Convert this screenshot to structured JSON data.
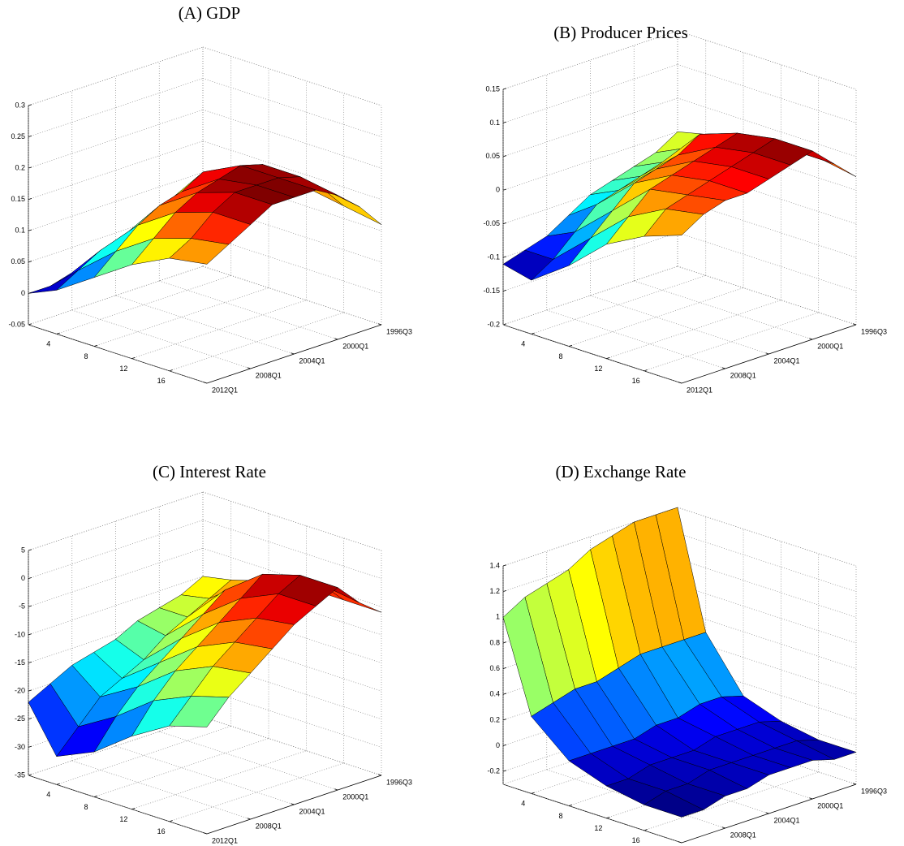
{
  "chart_data": [
    {
      "type": "surface",
      "title": "(A) GDP",
      "x": [
        1,
        4,
        8,
        12,
        16,
        20
      ],
      "xlim": [
        1,
        20
      ],
      "xticks": [
        4,
        8,
        12,
        16
      ],
      "y": [
        "2012Q1",
        null,
        "2008Q1",
        null,
        "2004Q1",
        null,
        "2000Q1",
        null,
        "1996Q3"
      ],
      "zlim": [
        -0.05,
        0.3
      ],
      "zticks": [
        -0.05,
        0,
        0.05,
        0.1,
        0.15,
        0.2,
        0.25,
        0.3
      ],
      "grid": true,
      "z": [
        [
          0,
          0,
          0.01,
          0.01,
          0.01,
          0.02,
          0.02,
          0.02,
          0.03
        ],
        [
          0.02,
          0.04,
          0.06,
          0.07,
          0.08,
          0.1,
          0.1,
          0.09,
          0.1
        ],
        [
          0.06,
          0.09,
          0.12,
          0.14,
          0.15,
          0.17,
          0.16,
          0.15,
          0.14
        ],
        [
          0.1,
          0.13,
          0.16,
          0.18,
          0.19,
          0.2,
          0.19,
          0.16,
          0.13
        ],
        [
          0.13,
          0.15,
          0.18,
          0.2,
          0.2,
          0.2,
          0.19,
          0.16,
          0.12
        ],
        [
          0.14,
          0.16,
          0.18,
          0.2,
          0.2,
          0.2,
          0.18,
          0.15,
          0.11
        ]
      ]
    },
    {
      "type": "surface",
      "title": "(B) Producer Prices",
      "x": [
        1,
        4,
        8,
        12,
        16,
        20
      ],
      "xlim": [
        1,
        20
      ],
      "xticks": [
        4,
        8,
        12,
        16
      ],
      "y": [
        "2012Q1",
        null,
        "2008Q1",
        null,
        "2004Q1",
        null,
        "2000Q1",
        null,
        "1996Q3"
      ],
      "zlim": [
        -0.2,
        0.15
      ],
      "zticks": [
        -0.2,
        -0.15,
        -0.1,
        -0.05,
        0,
        0.05,
        0.1,
        0.15
      ],
      "grid": true,
      "z": [
        [
          -0.11,
          -0.1,
          -0.09,
          -0.07,
          -0.05,
          -0.04,
          -0.03,
          -0.02,
          0
        ],
        [
          -0.12,
          -0.1,
          -0.07,
          -0.04,
          -0.03,
          -0.02,
          -0.01,
          0,
          0.01
        ],
        [
          -0.08,
          -0.05,
          -0.02,
          0.01,
          0.02,
          0.03,
          0.05,
          0.04,
          0.02
        ],
        [
          -0.03,
          0,
          0.03,
          0.04,
          0.05,
          0.06,
          0.07,
          0.05,
          0.03
        ],
        [
          0,
          0.03,
          0.04,
          0.05,
          0.06,
          0.07,
          0.08,
          0.05,
          0.03
        ],
        [
          0.02,
          0.04,
          0.05,
          0.05,
          0.06,
          0.07,
          0.08,
          0.05,
          0.02
        ]
      ]
    },
    {
      "type": "surface",
      "title": "(C) Interest Rate",
      "x": [
        1,
        4,
        8,
        12,
        16,
        20
      ],
      "xlim": [
        1,
        20
      ],
      "xticks": [
        4,
        8,
        12,
        16
      ],
      "y": [
        "2012Q1",
        null,
        "2008Q1",
        null,
        "2004Q1",
        null,
        "2000Q1",
        null,
        "1996Q3"
      ],
      "zlim": [
        -35,
        5
      ],
      "zticks": [
        -35,
        -30,
        -25,
        -20,
        -15,
        -10,
        -5,
        0,
        5
      ],
      "grid": true,
      "z": [
        [
          -22,
          -20,
          -18,
          -17,
          -16,
          -14,
          -13,
          -12,
          -10
        ],
        [
          -30,
          -26,
          -22,
          -20,
          -18,
          -15,
          -13,
          -11,
          -9
        ],
        [
          -27,
          -22,
          -18,
          -15,
          -12,
          -9,
          -6,
          -6,
          -7
        ],
        [
          -22,
          -17,
          -13,
          -10,
          -7,
          -4,
          -1,
          -3,
          -6
        ],
        [
          -18,
          -14,
          -10,
          -7,
          -4,
          -1,
          1,
          -2,
          -6
        ],
        [
          -16,
          -12,
          -9,
          -6,
          -3,
          -1,
          1,
          -3,
          -6
        ]
      ]
    },
    {
      "type": "surface",
      "title": "(D) Exchange Rate",
      "x": [
        1,
        4,
        8,
        12,
        16,
        20
      ],
      "xlim": [
        1,
        20
      ],
      "xticks": [
        4,
        8,
        12,
        16
      ],
      "y": [
        "2012Q1",
        null,
        "2008Q1",
        null,
        "2004Q1",
        null,
        "2000Q1",
        null,
        "1996Q3"
      ],
      "zlim": [
        -0.3,
        1.4
      ],
      "zticks": [
        -0.2,
        0,
        0.2,
        0.4,
        0.6,
        0.8,
        1,
        1.2,
        1.4
      ],
      "grid": true,
      "z": [
        [
          1,
          1.1,
          1.15,
          1.2,
          1.3,
          1.35,
          1.4,
          1.4,
          1.4
        ],
        [
          0.3,
          0.35,
          0.4,
          0.4,
          0.45,
          0.5,
          0.5,
          0.5,
          0.5
        ],
        [
          0.05,
          0.05,
          0.05,
          0.05,
          0.1,
          0.1,
          0.15,
          0.15,
          0.1
        ],
        [
          -0.05,
          -0.05,
          0,
          0,
          0,
          0.05,
          0.05,
          0.05,
          0
        ],
        [
          -0.1,
          -0.05,
          -0.05,
          0,
          0,
          0,
          0,
          0,
          -0.05
        ],
        [
          -0.1,
          -0.1,
          -0.05,
          -0.05,
          0,
          0,
          0,
          -0.05,
          -0.05
        ]
      ]
    }
  ]
}
